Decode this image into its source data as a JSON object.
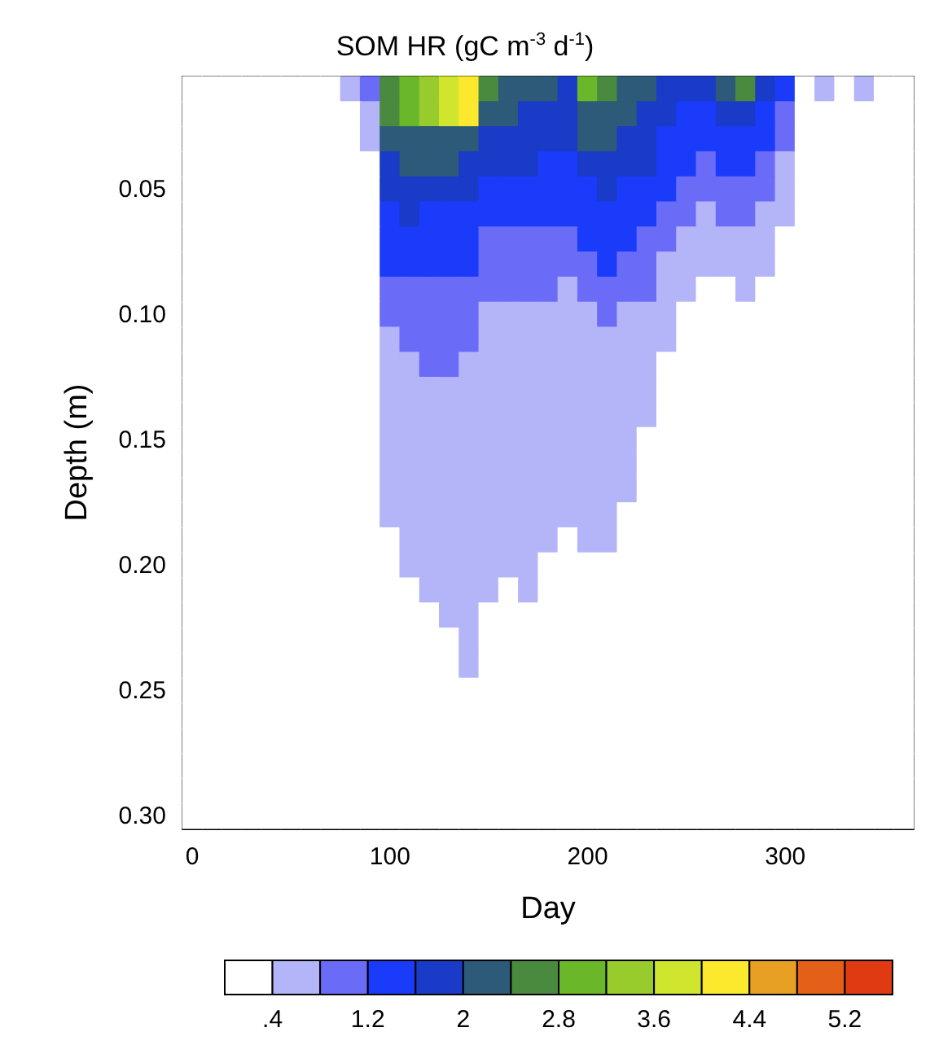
{
  "chart_data": {
    "type": "heatmap",
    "title": "SOM HR (gC m$^{-3}$ d$^{-1}$)",
    "xlabel": "Day",
    "ylabel": "Depth (m)",
    "categories": [
      "0",
      null,
      null,
      null,
      null,
      null,
      null,
      null,
      null,
      null,
      "100",
      null,
      null,
      null,
      null,
      null,
      null,
      null,
      null,
      null,
      "200",
      null,
      null,
      null,
      null,
      null,
      null,
      null,
      null,
      null,
      "300",
      null,
      null,
      null,
      null,
      null,
      null
    ],
    "y_categories": [
      null,
      null,
      null,
      null,
      "0.05",
      null,
      null,
      null,
      null,
      "0.10",
      null,
      null,
      null,
      null,
      "0.15",
      null,
      null,
      null,
      null,
      "0.20",
      null,
      null,
      null,
      null,
      "0.25",
      null,
      null,
      null,
      null,
      "0.30"
    ],
    "cticks": [
      {
        "value": 0.4,
        "label": ".4"
      },
      {
        "value": 0.8,
        "label": null
      },
      1.2,
      {
        "value": 1.6,
        "label": null
      },
      2,
      {
        "value": 2.4,
        "label": null
      },
      2.8,
      {
        "value": 3.2,
        "label": null
      },
      3.6,
      {
        "value": 4.0,
        "label": null
      },
      4.4,
      {
        "value": 4.8,
        "label": null
      },
      5.2
    ],
    "clim": [
      0,
      5.6
    ],
    "colors": [
      "#ffffff",
      "#b4b4f8",
      "#6a6cf8",
      "#1a3cfa",
      "#1a3ac8",
      "#2c5a78",
      "#4a8a3e",
      "#6ab82a",
      "#98cc2c",
      "#d0e62e",
      "#fce82c",
      "#e8a024",
      "#e46018",
      "#e03a12"
    ],
    "cells": [
      [
        0,
        0,
        0,
        0,
        0,
        0,
        0,
        0,
        0.6,
        1.0,
        2.6,
        3.0,
        3.4,
        3.8,
        4.2,
        2.6,
        2.2,
        2.2,
        2.2,
        1.8,
        3.0,
        2.6,
        2.2,
        2.2,
        1.8,
        1.8,
        1.8,
        2.2,
        2.6,
        1.8,
        1.4,
        0,
        0.6,
        0,
        0.6,
        0,
        0
      ],
      [
        0,
        0,
        0,
        0,
        0,
        0,
        0,
        0,
        0,
        0.6,
        2.6,
        3.0,
        3.4,
        3.8,
        4.2,
        2.2,
        2.2,
        1.8,
        1.8,
        1.8,
        2.2,
        2.2,
        2.2,
        1.8,
        1.8,
        1.4,
        1.4,
        1.8,
        1.8,
        1.4,
        1.0,
        0,
        0,
        0,
        0,
        0,
        0
      ],
      [
        0,
        0,
        0,
        0,
        0,
        0,
        0,
        0,
        0,
        0.6,
        2.2,
        2.2,
        2.2,
        2.2,
        2.2,
        1.8,
        1.8,
        1.8,
        1.8,
        1.8,
        2.2,
        2.2,
        1.8,
        1.8,
        1.4,
        1.4,
        1.4,
        1.4,
        1.4,
        1.4,
        1.0,
        0,
        0,
        0,
        0,
        0,
        0
      ],
      [
        0,
        0,
        0,
        0,
        0,
        0,
        0,
        0,
        0,
        0,
        1.8,
        2.2,
        2.2,
        2.2,
        1.8,
        1.8,
        1.8,
        1.8,
        1.4,
        1.4,
        1.8,
        1.8,
        1.8,
        1.8,
        1.4,
        1.4,
        1.0,
        1.4,
        1.4,
        1.0,
        0.6,
        0,
        0,
        0,
        0,
        0,
        0
      ],
      [
        0,
        0,
        0,
        0,
        0,
        0,
        0,
        0,
        0,
        0,
        1.8,
        1.8,
        1.8,
        1.8,
        1.8,
        1.4,
        1.4,
        1.4,
        1.4,
        1.4,
        1.4,
        1.8,
        1.4,
        1.4,
        1.4,
        1.0,
        1.0,
        1.0,
        1.0,
        1.0,
        0.6,
        0,
        0,
        0,
        0,
        0,
        0
      ],
      [
        0,
        0,
        0,
        0,
        0,
        0,
        0,
        0,
        0,
        0,
        1.4,
        1.8,
        1.4,
        1.4,
        1.4,
        1.4,
        1.4,
        1.4,
        1.4,
        1.4,
        1.4,
        1.4,
        1.4,
        1.4,
        1.0,
        1.0,
        0.6,
        1.0,
        1.0,
        0.6,
        0.6,
        0,
        0,
        0,
        0,
        0,
        0
      ],
      [
        0,
        0,
        0,
        0,
        0,
        0,
        0,
        0,
        0,
        0,
        1.4,
        1.4,
        1.4,
        1.4,
        1.4,
        1.0,
        1.0,
        1.0,
        1.0,
        1.0,
        1.4,
        1.4,
        1.4,
        1.0,
        1.0,
        0.6,
        0.6,
        0.6,
        0.6,
        0.6,
        0,
        0,
        0,
        0,
        0,
        0,
        0
      ],
      [
        0,
        0,
        0,
        0,
        0,
        0,
        0,
        0,
        0,
        0,
        1.4,
        1.4,
        1.4,
        1.4,
        1.4,
        1.0,
        1.0,
        1.0,
        1.0,
        1.0,
        1.0,
        1.4,
        1.0,
        1.0,
        0.6,
        0.6,
        0.6,
        0.6,
        0.6,
        0.6,
        0,
        0,
        0,
        0,
        0,
        0,
        0
      ],
      [
        0,
        0,
        0,
        0,
        0,
        0,
        0,
        0,
        0,
        0,
        1.0,
        1.0,
        1.0,
        1.0,
        1.0,
        1.0,
        1.0,
        1.0,
        1.0,
        0.6,
        1.0,
        1.0,
        1.0,
        1.0,
        0.6,
        0.6,
        0,
        0,
        0.6,
        0,
        0,
        0,
        0,
        0,
        0,
        0,
        0
      ],
      [
        0,
        0,
        0,
        0,
        0,
        0,
        0,
        0,
        0,
        0,
        1.0,
        1.0,
        1.0,
        1.0,
        1.0,
        0.6,
        0.6,
        0.6,
        0.6,
        0.6,
        0.6,
        1.0,
        0.6,
        0.6,
        0.6,
        0,
        0,
        0,
        0,
        0,
        0,
        0,
        0,
        0,
        0,
        0,
        0
      ],
      [
        0,
        0,
        0,
        0,
        0,
        0,
        0,
        0,
        0,
        0,
        0.6,
        1.0,
        1.0,
        1.0,
        1.0,
        0.6,
        0.6,
        0.6,
        0.6,
        0.6,
        0.6,
        0.6,
        0.6,
        0.6,
        0.6,
        0,
        0,
        0,
        0,
        0,
        0,
        0,
        0,
        0,
        0,
        0,
        0
      ],
      [
        0,
        0,
        0,
        0,
        0,
        0,
        0,
        0,
        0,
        0,
        0.6,
        0.6,
        1.0,
        1.0,
        0.6,
        0.6,
        0.6,
        0.6,
        0.6,
        0.6,
        0.6,
        0.6,
        0.6,
        0.6,
        0,
        0,
        0,
        0,
        0,
        0,
        0,
        0,
        0,
        0,
        0,
        0,
        0
      ],
      [
        0,
        0,
        0,
        0,
        0,
        0,
        0,
        0,
        0,
        0,
        0.6,
        0.6,
        0.6,
        0.6,
        0.6,
        0.6,
        0.6,
        0.6,
        0.6,
        0.6,
        0.6,
        0.6,
        0.6,
        0.6,
        0,
        0,
        0,
        0,
        0,
        0,
        0,
        0,
        0,
        0,
        0,
        0,
        0
      ],
      [
        0,
        0,
        0,
        0,
        0,
        0,
        0,
        0,
        0,
        0,
        0.6,
        0.6,
        0.6,
        0.6,
        0.6,
        0.6,
        0.6,
        0.6,
        0.6,
        0.6,
        0.6,
        0.6,
        0.6,
        0.6,
        0,
        0,
        0,
        0,
        0,
        0,
        0,
        0,
        0,
        0,
        0,
        0,
        0
      ],
      [
        0,
        0,
        0,
        0,
        0,
        0,
        0,
        0,
        0,
        0,
        0.6,
        0.6,
        0.6,
        0.6,
        0.6,
        0.6,
        0.6,
        0.6,
        0.6,
        0.6,
        0.6,
        0.6,
        0.6,
        0,
        0,
        0,
        0,
        0,
        0,
        0,
        0,
        0,
        0,
        0,
        0,
        0,
        0
      ],
      [
        0,
        0,
        0,
        0,
        0,
        0,
        0,
        0,
        0,
        0,
        0.6,
        0.6,
        0.6,
        0.6,
        0.6,
        0.6,
        0.6,
        0.6,
        0.6,
        0.6,
        0.6,
        0.6,
        0.6,
        0,
        0,
        0,
        0,
        0,
        0,
        0,
        0,
        0,
        0,
        0,
        0,
        0,
        0
      ],
      [
        0,
        0,
        0,
        0,
        0,
        0,
        0,
        0,
        0,
        0,
        0.6,
        0.6,
        0.6,
        0.6,
        0.6,
        0.6,
        0.6,
        0.6,
        0.6,
        0.6,
        0.6,
        0.6,
        0.6,
        0,
        0,
        0,
        0,
        0,
        0,
        0,
        0,
        0,
        0,
        0,
        0,
        0,
        0
      ],
      [
        0,
        0,
        0,
        0,
        0,
        0,
        0,
        0,
        0,
        0,
        0.6,
        0.6,
        0.6,
        0.6,
        0.6,
        0.6,
        0.6,
        0.6,
        0.6,
        0.6,
        0.6,
        0.6,
        0,
        0,
        0,
        0,
        0,
        0,
        0,
        0,
        0,
        0,
        0,
        0,
        0,
        0,
        0
      ],
      [
        0,
        0,
        0,
        0,
        0,
        0,
        0,
        0,
        0,
        0,
        0,
        0.6,
        0.6,
        0.6,
        0.6,
        0.6,
        0.6,
        0.6,
        0.6,
        0,
        0.6,
        0.6,
        0,
        0,
        0,
        0,
        0,
        0,
        0,
        0,
        0,
        0,
        0,
        0,
        0,
        0,
        0
      ],
      [
        0,
        0,
        0,
        0,
        0,
        0,
        0,
        0,
        0,
        0,
        0,
        0.6,
        0.6,
        0.6,
        0.6,
        0.6,
        0.6,
        0.6,
        0,
        0,
        0,
        0,
        0,
        0,
        0,
        0,
        0,
        0,
        0,
        0,
        0,
        0,
        0,
        0,
        0,
        0,
        0
      ],
      [
        0,
        0,
        0,
        0,
        0,
        0,
        0,
        0,
        0,
        0,
        0,
        0,
        0.6,
        0.6,
        0.6,
        0.6,
        0,
        0.6,
        0,
        0,
        0,
        0,
        0,
        0,
        0,
        0,
        0,
        0,
        0,
        0,
        0,
        0,
        0,
        0,
        0,
        0,
        0
      ],
      [
        0,
        0,
        0,
        0,
        0,
        0,
        0,
        0,
        0,
        0,
        0,
        0,
        0,
        0.6,
        0.6,
        0,
        0,
        0,
        0,
        0,
        0,
        0,
        0,
        0,
        0,
        0,
        0,
        0,
        0,
        0,
        0,
        0,
        0,
        0,
        0,
        0,
        0
      ],
      [
        0,
        0,
        0,
        0,
        0,
        0,
        0,
        0,
        0,
        0,
        0,
        0,
        0,
        0,
        0.6,
        0,
        0,
        0,
        0,
        0,
        0,
        0,
        0,
        0,
        0,
        0,
        0,
        0,
        0,
        0,
        0,
        0,
        0,
        0,
        0,
        0,
        0
      ],
      [
        0,
        0,
        0,
        0,
        0,
        0,
        0,
        0,
        0,
        0,
        0,
        0,
        0,
        0,
        0.6,
        0,
        0,
        0,
        0,
        0,
        0,
        0,
        0,
        0,
        0,
        0,
        0,
        0,
        0,
        0,
        0,
        0,
        0,
        0,
        0,
        0,
        0
      ],
      [
        0,
        0,
        0,
        0,
        0,
        0,
        0,
        0,
        0,
        0,
        0,
        0,
        0,
        0,
        0,
        0,
        0,
        0,
        0,
        0,
        0,
        0,
        0,
        0,
        0,
        0,
        0,
        0,
        0,
        0,
        0,
        0,
        0,
        0,
        0,
        0,
        0
      ],
      [
        0,
        0,
        0,
        0,
        0,
        0,
        0,
        0,
        0,
        0,
        0,
        0,
        0,
        0,
        0,
        0,
        0,
        0,
        0,
        0,
        0,
        0,
        0,
        0,
        0,
        0,
        0,
        0,
        0,
        0,
        0,
        0,
        0,
        0,
        0,
        0,
        0
      ],
      [
        0,
        0,
        0,
        0,
        0,
        0,
        0,
        0,
        0,
        0,
        0,
        0,
        0,
        0,
        0,
        0,
        0,
        0,
        0,
        0,
        0,
        0,
        0,
        0,
        0,
        0,
        0,
        0,
        0,
        0,
        0,
        0,
        0,
        0,
        0,
        0,
        0
      ],
      [
        0,
        0,
        0,
        0,
        0,
        0,
        0,
        0,
        0,
        0,
        0,
        0,
        0,
        0,
        0,
        0,
        0,
        0,
        0,
        0,
        0,
        0,
        0,
        0,
        0,
        0,
        0,
        0,
        0,
        0,
        0,
        0,
        0,
        0,
        0,
        0,
        0
      ],
      [
        0,
        0,
        0,
        0,
        0,
        0,
        0,
        0,
        0,
        0,
        0,
        0,
        0,
        0,
        0,
        0,
        0,
        0,
        0,
        0,
        0,
        0,
        0,
        0,
        0,
        0,
        0,
        0,
        0,
        0,
        0,
        0,
        0,
        0,
        0,
        0,
        0
      ],
      [
        0,
        0,
        0,
        0,
        0,
        0,
        0,
        0,
        0,
        0,
        0,
        0,
        0,
        0,
        0,
        0,
        0,
        0,
        0,
        0,
        0,
        0,
        0,
        0,
        0,
        0,
        0,
        0,
        0,
        0,
        0,
        0,
        0,
        0,
        0,
        0,
        0
      ]
    ]
  }
}
